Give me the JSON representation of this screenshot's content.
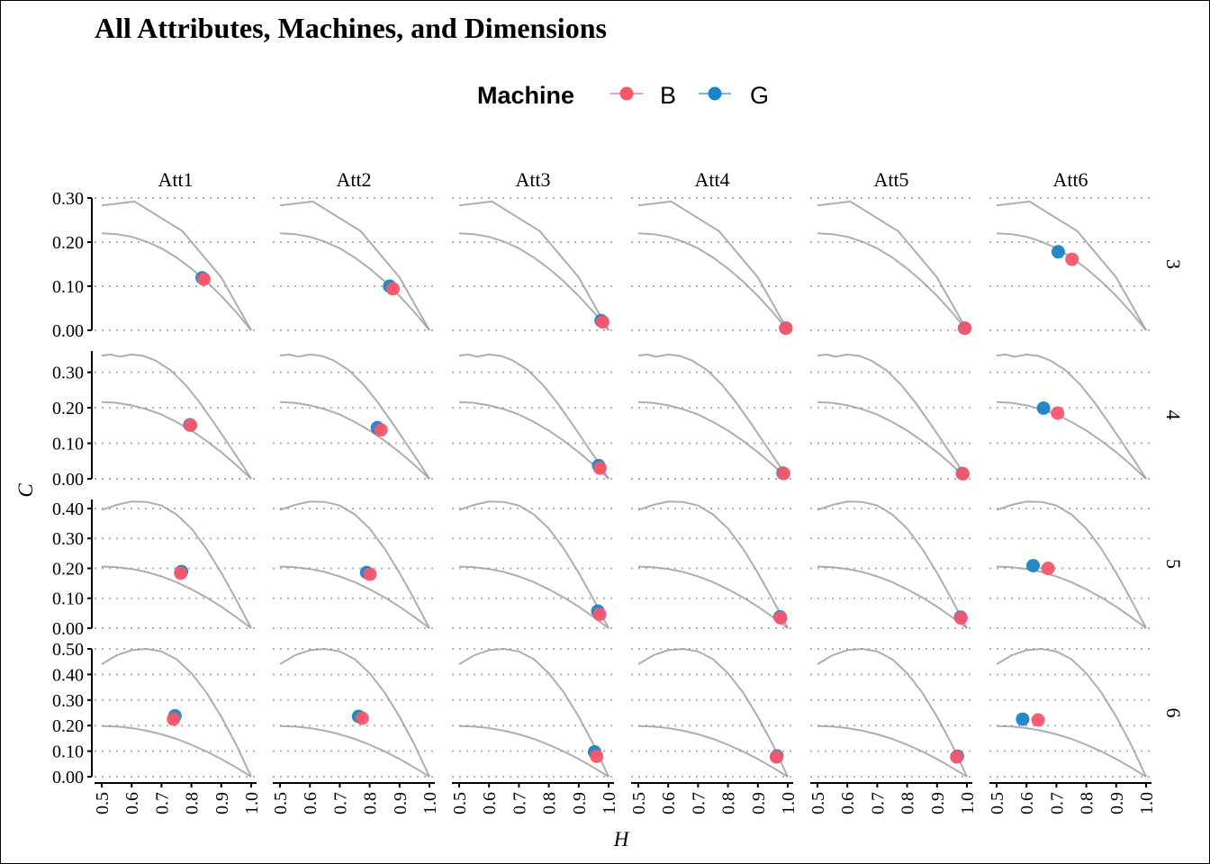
{
  "chart_data": {
    "type": "scatter",
    "title": "All Attributes, Machines, and Dimensions",
    "xlabel": "H",
    "ylabel": "C",
    "legend": {
      "title": "Machine",
      "position": "top",
      "entries": [
        {
          "label": "B",
          "color": "#F8566A"
        },
        {
          "label": "G",
          "color": "#1A84C6"
        }
      ]
    },
    "col_facets": [
      "Att1",
      "Att2",
      "Att3",
      "Att4",
      "Att5",
      "Att6"
    ],
    "row_facets": [
      {
        "label": "3",
        "ylim": [
          0,
          0.3
        ],
        "yticks": [
          "0.00",
          "0.10",
          "0.20",
          "0.30"
        ],
        "yvals": [
          0,
          0.1,
          0.2,
          0.3
        ]
      },
      {
        "label": "4",
        "ylim": [
          0,
          0.36
        ],
        "yticks": [
          "0.00",
          "0.10",
          "0.20",
          "0.30"
        ],
        "yvals": [
          0,
          0.1,
          0.2,
          0.3
        ]
      },
      {
        "label": "5",
        "ylim": [
          0,
          0.43
        ],
        "yticks": [
          "0.00",
          "0.10",
          "0.20",
          "0.30",
          "0.40"
        ],
        "yvals": [
          0,
          0.1,
          0.2,
          0.3,
          0.4
        ]
      },
      {
        "label": "6",
        "ylim": [
          0,
          0.5
        ],
        "yticks": [
          "0.00",
          "0.10",
          "0.20",
          "0.30",
          "0.40",
          "0.50"
        ],
        "yvals": [
          0,
          0.1,
          0.2,
          0.3,
          0.4,
          0.5
        ]
      }
    ],
    "xlim": [
      0.5,
      1.0
    ],
    "xticks": [
      "0.5",
      "0.6",
      "0.7",
      "0.8",
      "0.9",
      "1.0"
    ],
    "xvals": [
      0.5,
      0.6,
      0.7,
      0.8,
      0.9,
      1.0
    ],
    "grid": "horizontal dotted",
    "points": [
      {
        "row": "3",
        "col": "Att1",
        "machine": "G",
        "H": 0.836,
        "C": 0.119
      },
      {
        "row": "3",
        "col": "Att1",
        "machine": "B",
        "H": 0.842,
        "C": 0.116
      },
      {
        "row": "3",
        "col": "Att2",
        "machine": "G",
        "H": 0.867,
        "C": 0.1
      },
      {
        "row": "3",
        "col": "Att2",
        "machine": "B",
        "H": 0.878,
        "C": 0.094
      },
      {
        "row": "3",
        "col": "Att3",
        "machine": "G",
        "H": 0.975,
        "C": 0.022
      },
      {
        "row": "3",
        "col": "Att3",
        "machine": "B",
        "H": 0.98,
        "C": 0.019
      },
      {
        "row": "3",
        "col": "Att4",
        "machine": "G",
        "H": 0.993,
        "C": 0.005
      },
      {
        "row": "3",
        "col": "Att4",
        "machine": "B",
        "H": 0.994,
        "C": 0.005
      },
      {
        "row": "3",
        "col": "Att5",
        "machine": "G",
        "H": 0.992,
        "C": 0.005
      },
      {
        "row": "3",
        "col": "Att5",
        "machine": "B",
        "H": 0.993,
        "C": 0.005
      },
      {
        "row": "3",
        "col": "Att6",
        "machine": "G",
        "H": 0.706,
        "C": 0.178
      },
      {
        "row": "3",
        "col": "Att6",
        "machine": "B",
        "H": 0.752,
        "C": 0.161
      },
      {
        "row": "4",
        "col": "Att1",
        "machine": "G",
        "H": 0.795,
        "C": 0.152
      },
      {
        "row": "4",
        "col": "Att1",
        "machine": "B",
        "H": 0.797,
        "C": 0.151
      },
      {
        "row": "4",
        "col": "Att2",
        "machine": "G",
        "H": 0.826,
        "C": 0.144
      },
      {
        "row": "4",
        "col": "Att2",
        "machine": "B",
        "H": 0.838,
        "C": 0.138
      },
      {
        "row": "4",
        "col": "Att3",
        "machine": "G",
        "H": 0.967,
        "C": 0.037
      },
      {
        "row": "4",
        "col": "Att3",
        "machine": "B",
        "H": 0.971,
        "C": 0.03
      },
      {
        "row": "4",
        "col": "Att4",
        "machine": "G",
        "H": 0.984,
        "C": 0.016
      },
      {
        "row": "4",
        "col": "Att4",
        "machine": "B",
        "H": 0.986,
        "C": 0.015
      },
      {
        "row": "4",
        "col": "Att5",
        "machine": "G",
        "H": 0.985,
        "C": 0.015
      },
      {
        "row": "4",
        "col": "Att5",
        "machine": "B",
        "H": 0.986,
        "C": 0.014
      },
      {
        "row": "4",
        "col": "Att6",
        "machine": "G",
        "H": 0.657,
        "C": 0.199
      },
      {
        "row": "4",
        "col": "Att6",
        "machine": "B",
        "H": 0.704,
        "C": 0.185
      },
      {
        "row": "5",
        "col": "Att1",
        "machine": "G",
        "H": 0.767,
        "C": 0.189
      },
      {
        "row": "5",
        "col": "Att1",
        "machine": "B",
        "H": 0.764,
        "C": 0.184
      },
      {
        "row": "5",
        "col": "Att2",
        "machine": "G",
        "H": 0.79,
        "C": 0.186
      },
      {
        "row": "5",
        "col": "Att2",
        "machine": "B",
        "H": 0.801,
        "C": 0.18
      },
      {
        "row": "5",
        "col": "Att3",
        "machine": "G",
        "H": 0.964,
        "C": 0.057
      },
      {
        "row": "5",
        "col": "Att3",
        "machine": "B",
        "H": 0.97,
        "C": 0.046
      },
      {
        "row": "5",
        "col": "Att4",
        "machine": "G",
        "H": 0.974,
        "C": 0.038
      },
      {
        "row": "5",
        "col": "Att4",
        "machine": "B",
        "H": 0.976,
        "C": 0.035
      },
      {
        "row": "5",
        "col": "Att5",
        "machine": "G",
        "H": 0.979,
        "C": 0.037
      },
      {
        "row": "5",
        "col": "Att5",
        "machine": "B",
        "H": 0.98,
        "C": 0.034
      },
      {
        "row": "5",
        "col": "Att6",
        "machine": "G",
        "H": 0.622,
        "C": 0.209
      },
      {
        "row": "5",
        "col": "Att6",
        "machine": "B",
        "H": 0.672,
        "C": 0.2
      },
      {
        "row": "6",
        "col": "Att1",
        "machine": "G",
        "H": 0.745,
        "C": 0.238
      },
      {
        "row": "6",
        "col": "Att1",
        "machine": "B",
        "H": 0.74,
        "C": 0.225
      },
      {
        "row": "6",
        "col": "Att2",
        "machine": "G",
        "H": 0.763,
        "C": 0.236
      },
      {
        "row": "6",
        "col": "Att2",
        "machine": "B",
        "H": 0.775,
        "C": 0.229
      },
      {
        "row": "6",
        "col": "Att3",
        "machine": "G",
        "H": 0.953,
        "C": 0.097
      },
      {
        "row": "6",
        "col": "Att3",
        "machine": "B",
        "H": 0.96,
        "C": 0.08
      },
      {
        "row": "6",
        "col": "Att4",
        "machine": "G",
        "H": 0.964,
        "C": 0.081
      },
      {
        "row": "6",
        "col": "Att4",
        "machine": "B",
        "H": 0.962,
        "C": 0.077
      },
      {
        "row": "6",
        "col": "Att5",
        "machine": "G",
        "H": 0.968,
        "C": 0.08
      },
      {
        "row": "6",
        "col": "Att5",
        "machine": "B",
        "H": 0.966,
        "C": 0.077
      },
      {
        "row": "6",
        "col": "Att6",
        "machine": "G",
        "H": 0.587,
        "C": 0.225
      },
      {
        "row": "6",
        "col": "Att6",
        "machine": "B",
        "H": 0.639,
        "C": 0.222
      }
    ],
    "boundaries": {
      "lower": {
        "3": [
          [
            0.5,
            0.22
          ],
          [
            0.55,
            0.218
          ],
          [
            0.6,
            0.212
          ],
          [
            0.65,
            0.201
          ],
          [
            0.7,
            0.186
          ],
          [
            0.75,
            0.165
          ],
          [
            0.8,
            0.14
          ],
          [
            0.85,
            0.111
          ],
          [
            0.9,
            0.078
          ],
          [
            0.95,
            0.041
          ],
          [
            1.0,
            0
          ]
        ],
        "4": [
          [
            0.5,
            0.216
          ],
          [
            0.55,
            0.214
          ],
          [
            0.6,
            0.207
          ],
          [
            0.65,
            0.196
          ],
          [
            0.7,
            0.181
          ],
          [
            0.75,
            0.16
          ],
          [
            0.8,
            0.136
          ],
          [
            0.85,
            0.107
          ],
          [
            0.9,
            0.075
          ],
          [
            0.95,
            0.039
          ],
          [
            1.0,
            0
          ]
        ],
        "5": [
          [
            0.5,
            0.206
          ],
          [
            0.55,
            0.204
          ],
          [
            0.6,
            0.198
          ],
          [
            0.65,
            0.188
          ],
          [
            0.7,
            0.173
          ],
          [
            0.75,
            0.154
          ],
          [
            0.8,
            0.13
          ],
          [
            0.85,
            0.103
          ],
          [
            0.9,
            0.072
          ],
          [
            0.95,
            0.037
          ],
          [
            1.0,
            0
          ]
        ],
        "6": [
          [
            0.5,
            0.198
          ],
          [
            0.55,
            0.196
          ],
          [
            0.6,
            0.19
          ],
          [
            0.65,
            0.18
          ],
          [
            0.7,
            0.166
          ],
          [
            0.75,
            0.148
          ],
          [
            0.8,
            0.125
          ],
          [
            0.85,
            0.099
          ],
          [
            0.9,
            0.069
          ],
          [
            0.95,
            0.036
          ],
          [
            1.0,
            0
          ]
        ]
      },
      "upper": {
        "3": [
          [
            0.5,
            0.283
          ],
          [
            0.61,
            0.292
          ],
          [
            0.77,
            0.225
          ],
          [
            0.9,
            0.12
          ],
          [
            1.0,
            0
          ]
        ],
        "4": [
          [
            0.5,
            0.347
          ],
          [
            0.53,
            0.35
          ],
          [
            0.56,
            0.344
          ],
          [
            0.6,
            0.35
          ],
          [
            0.64,
            0.346
          ],
          [
            0.68,
            0.333
          ],
          [
            0.73,
            0.306
          ],
          [
            0.78,
            0.265
          ],
          [
            0.83,
            0.212
          ],
          [
            0.88,
            0.152
          ],
          [
            0.93,
            0.09
          ],
          [
            0.97,
            0.04
          ],
          [
            1.0,
            0
          ]
        ],
        "5": [
          [
            0.5,
            0.395
          ],
          [
            0.55,
            0.412
          ],
          [
            0.6,
            0.423
          ],
          [
            0.65,
            0.422
          ],
          [
            0.7,
            0.41
          ],
          [
            0.75,
            0.38
          ],
          [
            0.8,
            0.333
          ],
          [
            0.85,
            0.266
          ],
          [
            0.9,
            0.185
          ],
          [
            0.95,
            0.095
          ],
          [
            1.0,
            0
          ]
        ],
        "6": [
          [
            0.5,
            0.44
          ],
          [
            0.55,
            0.475
          ],
          [
            0.6,
            0.495
          ],
          [
            0.65,
            0.5
          ],
          [
            0.7,
            0.49
          ],
          [
            0.75,
            0.46
          ],
          [
            0.8,
            0.405
          ],
          [
            0.85,
            0.33
          ],
          [
            0.9,
            0.235
          ],
          [
            0.95,
            0.125
          ],
          [
            1.0,
            0
          ]
        ]
      }
    }
  }
}
